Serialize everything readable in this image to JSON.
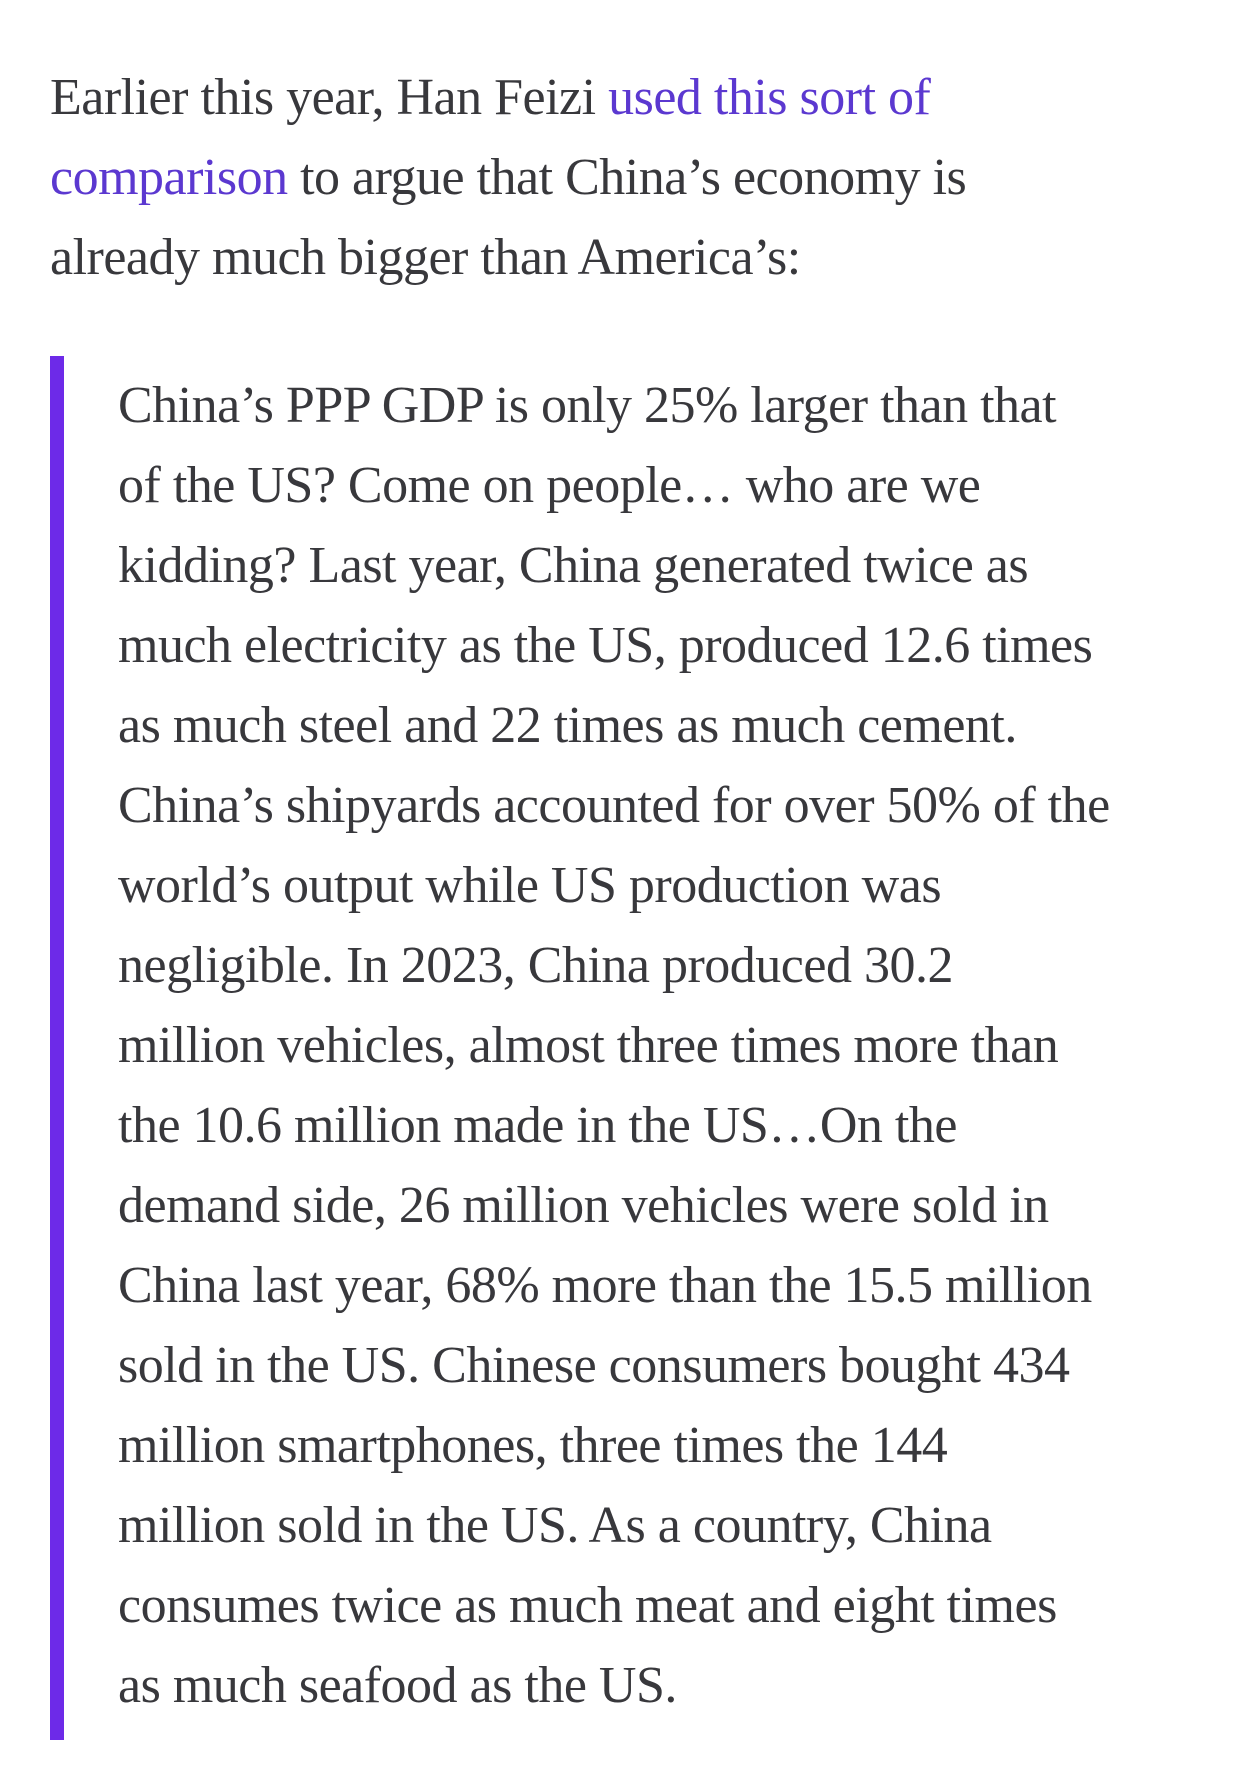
{
  "colors": {
    "link": "#5b38d0",
    "quote_border": "#6d2ae8",
    "text": "#38383c",
    "background": "#ffffff"
  },
  "intro": {
    "line1_text": "Earlier this year, Han Feizi ",
    "line1_link": "used this sort of",
    "line2_link": "comparison",
    "line2_text": " to argue that China’s economy is",
    "line3_text": "already much bigger than America’s:",
    "link_text": "used this sort of comparison",
    "full_text": "Earlier this year, Han Feizi used this sort of comparison to argue that China’s economy is already much bigger than America’s:"
  },
  "quote": {
    "lines": [
      "China’s PPP GDP is only 25% larger than that",
      "of the US? Come on people… who are we",
      "kidding? Last year, China generated twice as",
      "much electricity as the US, produced 12.6 times",
      "as much steel and 22 times as much cement.",
      "China’s shipyards accounted for over 50% of the",
      "world’s output while US production was",
      "negligible. In 2023, China produced 30.2",
      "million vehicles, almost three times more than",
      "the 10.6 million made in the US…On the",
      "demand side, 26 million vehicles were sold in",
      "China last year, 68% more than the 15.5 million",
      "sold in the US. Chinese consumers bought 434",
      "million smartphones, three times the 144",
      "million sold in the US. As a country, China",
      "consumes twice as much meat and eight times",
      "as much seafood as the US."
    ],
    "full_text": "China’s PPP GDP is only 25% larger than that of the US? Come on people… who are we kidding? Last year, China generated twice as much electricity as the US, produced 12.6 times as much steel and 22 times as much cement. China’s shipyards accounted for over 50% of the world’s output while US production was negligible. In 2023, China produced 30.2 million vehicles, almost three times more than the 10.6 million made in the US…On the demand side, 26 million vehicles were sold in China last year, 68% more than the 15.5 million sold in the US. Chinese consumers bought 434 million smartphones, three times the 144 million sold in the US. As a country, China consumes twice as much meat and eight times as much seafood as the US."
  }
}
